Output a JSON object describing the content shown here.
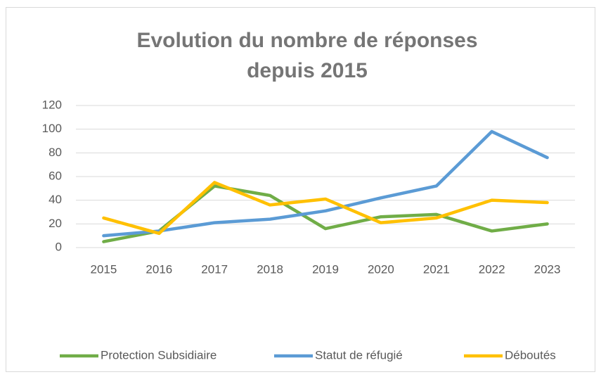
{
  "chart_data": {
    "type": "line",
    "title": "Evolution du nombre de réponses depuis 2015",
    "categories": [
      "2015",
      "2016",
      "2017",
      "2018",
      "2019",
      "2020",
      "2021",
      "2022",
      "2023"
    ],
    "series": [
      {
        "name": "Protection Subsidiaire",
        "color": "#70ad47",
        "values": [
          5,
          14,
          52,
          44,
          16,
          26,
          28,
          14,
          20
        ]
      },
      {
        "name": "Statut de réfugié",
        "color": "#5b9bd5",
        "values": [
          10,
          14,
          21,
          24,
          31,
          42,
          52,
          98,
          76
        ]
      },
      {
        "name": "Déboutés",
        "color": "#ffc000",
        "values": [
          25,
          12,
          55,
          36,
          41,
          21,
          25,
          40,
          38
        ]
      }
    ],
    "ylim": [
      0,
      120
    ],
    "yticks": [
      0,
      20,
      40,
      60,
      80,
      100,
      120
    ],
    "grid": true,
    "legend": "bottom"
  }
}
